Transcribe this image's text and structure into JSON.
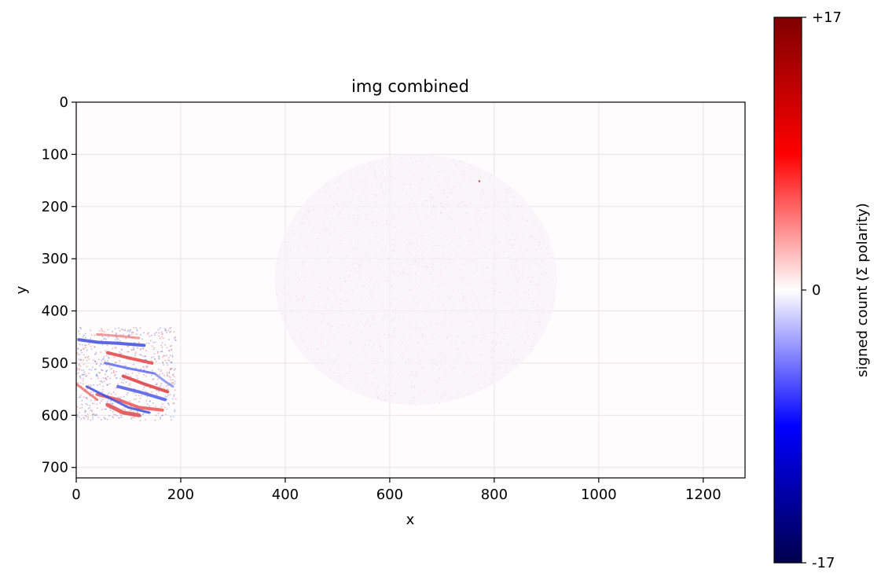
{
  "chart_data": {
    "type": "heatmap",
    "title": "img combined",
    "xlabel": "x",
    "ylabel": "y",
    "xlim": [
      0,
      1280
    ],
    "ylim": [
      720,
      0
    ],
    "x_ticks": [
      0,
      200,
      400,
      600,
      800,
      1000,
      1200
    ],
    "y_ticks": [
      0,
      100,
      200,
      300,
      400,
      500,
      600,
      700
    ],
    "grid": true,
    "colormap": "seismic",
    "colorbar": {
      "label": "signed count (Σ polarity)",
      "range": [
        -17,
        17
      ],
      "tick_labels": [
        "+17",
        "0",
        "-17"
      ],
      "tick_values": [
        17,
        0,
        -17
      ]
    },
    "regions": [
      {
        "kind": "diffuse-disc",
        "cx": 650,
        "cy": 340,
        "rx": 270,
        "ry": 240,
        "polarity": "mixed"
      },
      {
        "kind": "hand-edges",
        "x_range": [
          0,
          190
        ],
        "y_range": [
          430,
          610
        ],
        "polarity": "mixed"
      }
    ],
    "colors": {
      "positive": "#ff0000",
      "negative": "#0000ff",
      "zero": "#ffffff",
      "grid": "#e6e6e6"
    }
  }
}
